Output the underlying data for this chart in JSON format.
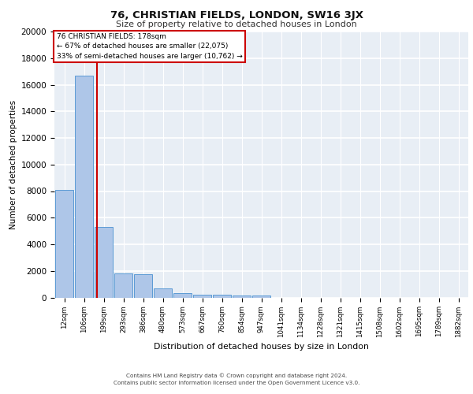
{
  "title": "76, CHRISTIAN FIELDS, LONDON, SW16 3JX",
  "subtitle": "Size of property relative to detached houses in London",
  "xlabel": "Distribution of detached houses by size in London",
  "ylabel": "Number of detached properties",
  "bin_labels": [
    "12sqm",
    "106sqm",
    "199sqm",
    "293sqm",
    "386sqm",
    "480sqm",
    "573sqm",
    "667sqm",
    "760sqm",
    "854sqm",
    "947sqm",
    "1041sqm",
    "1134sqm",
    "1228sqm",
    "1321sqm",
    "1415sqm",
    "1508sqm",
    "1602sqm",
    "1695sqm",
    "1789sqm",
    "1882sqm"
  ],
  "bar_heights": [
    8100,
    16700,
    5300,
    1800,
    1750,
    700,
    300,
    230,
    200,
    160,
    130,
    0,
    0,
    0,
    0,
    0,
    0,
    0,
    0,
    0,
    0
  ],
  "bar_color": "#aec6e8",
  "bar_edge_color": "#5b9bd5",
  "background_color": "#e8eef5",
  "grid_color": "#ffffff",
  "property_line_x": 1.65,
  "property_sqm": 178,
  "pct_smaller": 67,
  "count_smaller": 22075,
  "pct_larger": 33,
  "count_larger": 10762,
  "annotation_box_color": "#ffffff",
  "annotation_box_edge": "#cc0000",
  "property_line_color": "#cc0000",
  "ylim": [
    0,
    20000
  ],
  "yticks": [
    0,
    2000,
    4000,
    6000,
    8000,
    10000,
    12000,
    14000,
    16000,
    18000,
    20000
  ],
  "footer1": "Contains HM Land Registry data © Crown copyright and database right 2024.",
  "footer2": "Contains public sector information licensed under the Open Government Licence v3.0."
}
